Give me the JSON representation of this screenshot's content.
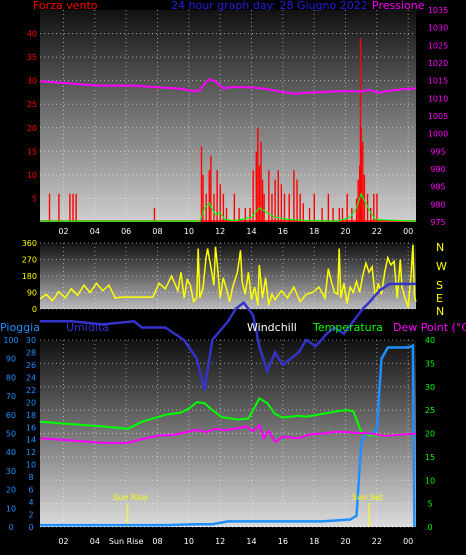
{
  "colors": {
    "wind": "#ff0000",
    "pressure": "#ff00ff",
    "title": "#2222dd",
    "winddir": "#ffff00",
    "rain": "#1e90ff",
    "humidity": "#3333cc",
    "windchill": "#ffffff",
    "temperature": "#00ff00",
    "dewpoint": "#ff00ff"
  },
  "top": {
    "left_label": "Forza vento",
    "title": "24 hour graph day:  28 Giugno 2022",
    "right_label": "Pressione"
  },
  "bottom": {
    "rain_label": "Pioggia",
    "humidity_label": "Umidita",
    "windchill_label": "Windchill",
    "temp_label": "Temperatura",
    "dew_label": "Dew Point (°C)",
    "sunrise_label": "Sun Rise",
    "sunset_label": "Sun Set"
  },
  "compass": [
    "N",
    "W",
    "S",
    "E",
    "N"
  ],
  "chart_data": [
    {
      "type": "bar",
      "name": "wind-pressure",
      "x_ticks": [
        "02",
        "04",
        "06",
        "08",
        "10",
        "12",
        "14",
        "16",
        "18",
        "20",
        "22",
        "00"
      ],
      "ylim_left": [
        0,
        45
      ],
      "yticks_left": [
        "5",
        "10",
        "15",
        "20",
        "25",
        "30",
        "35",
        "40"
      ],
      "ylim_right": [
        975,
        1035
      ],
      "yticks_right": [
        "975",
        "980",
        "985",
        "990",
        "995",
        "1000",
        "1005",
        "1010",
        "1015",
        "1020",
        "1025",
        "1030",
        "1035"
      ],
      "wind_gust_bars": [
        [
          0.6,
          6
        ],
        [
          1.2,
          6
        ],
        [
          1.9,
          6
        ],
        [
          2.1,
          6
        ],
        [
          2.3,
          6
        ],
        [
          7.3,
          3
        ],
        [
          10.3,
          16
        ],
        [
          10.4,
          10
        ],
        [
          10.6,
          6
        ],
        [
          10.8,
          11
        ],
        [
          10.9,
          14
        ],
        [
          11.1,
          6
        ],
        [
          11.3,
          11
        ],
        [
          11.5,
          8
        ],
        [
          11.7,
          6
        ],
        [
          11.9,
          3
        ],
        [
          12.4,
          6
        ],
        [
          12.7,
          3
        ],
        [
          13.1,
          3
        ],
        [
          13.4,
          3
        ],
        [
          13.6,
          11
        ],
        [
          13.8,
          15
        ],
        [
          13.9,
          20
        ],
        [
          14.0,
          12
        ],
        [
          14.1,
          17
        ],
        [
          14.2,
          9
        ],
        [
          14.3,
          6
        ],
        [
          14.6,
          11
        ],
        [
          14.8,
          6
        ],
        [
          15.0,
          9
        ],
        [
          15.2,
          11
        ],
        [
          15.4,
          8
        ],
        [
          15.6,
          6
        ],
        [
          15.9,
          6
        ],
        [
          16.2,
          11
        ],
        [
          16.4,
          9
        ],
        [
          16.6,
          6
        ],
        [
          16.8,
          4
        ],
        [
          17.2,
          3
        ],
        [
          17.5,
          6
        ],
        [
          18.0,
          3
        ],
        [
          18.4,
          6
        ],
        [
          18.7,
          3
        ],
        [
          19.1,
          3
        ],
        [
          19.3,
          3
        ],
        [
          19.6,
          6
        ],
        [
          19.9,
          3
        ],
        [
          20.2,
          5
        ],
        [
          20.3,
          9
        ],
        [
          20.4,
          12
        ],
        [
          20.45,
          39
        ],
        [
          20.5,
          20
        ],
        [
          20.6,
          17
        ],
        [
          20.7,
          10
        ],
        [
          20.9,
          6
        ],
        [
          21.1,
          3
        ],
        [
          21.3,
          6
        ],
        [
          21.5,
          6
        ]
      ],
      "wind_avg": [
        [
          0,
          0.2
        ],
        [
          10.2,
          0.2
        ],
        [
          10.3,
          1
        ],
        [
          10.5,
          3
        ],
        [
          10.8,
          4
        ],
        [
          11.2,
          1.5
        ],
        [
          11.5,
          2
        ],
        [
          11.8,
          0.5
        ],
        [
          12.5,
          0.3
        ],
        [
          13.5,
          1
        ],
        [
          14,
          3
        ],
        [
          14.5,
          2
        ],
        [
          15,
          1
        ],
        [
          16,
          0.5
        ],
        [
          17,
          0.3
        ],
        [
          19,
          0.2
        ],
        [
          19.8,
          1
        ],
        [
          20.2,
          3
        ],
        [
          20.5,
          6
        ],
        [
          20.8,
          4
        ],
        [
          21.1,
          2
        ],
        [
          21.4,
          0.5
        ],
        [
          24,
          0.2
        ]
      ],
      "pressure": [
        [
          0,
          1014.8
        ],
        [
          1,
          1014.5
        ],
        [
          2,
          1014.2
        ],
        [
          3,
          1013.8
        ],
        [
          4,
          1013.6
        ],
        [
          5,
          1013.6
        ],
        [
          6,
          1013.6
        ],
        [
          7,
          1013.3
        ],
        [
          8,
          1013.0
        ],
        [
          9,
          1012.7
        ],
        [
          9.6,
          1012.2
        ],
        [
          10.1,
          1012.0
        ],
        [
          10.5,
          1014.0
        ],
        [
          10.8,
          1015.4
        ],
        [
          11.2,
          1014.8
        ],
        [
          11.7,
          1012.8
        ],
        [
          12.3,
          1013.2
        ],
        [
          13.5,
          1013.1
        ],
        [
          14.5,
          1012.6
        ],
        [
          15.2,
          1012.0
        ],
        [
          15.8,
          1011.6
        ],
        [
          16.3,
          1011.3
        ],
        [
          17,
          1011.6
        ],
        [
          18,
          1011.8
        ],
        [
          19,
          1012.0
        ],
        [
          20,
          1012.0
        ],
        [
          20.5,
          1011.9
        ],
        [
          21,
          1012.4
        ],
        [
          21.6,
          1011.6
        ],
        [
          22.4,
          1012.2
        ],
        [
          23.2,
          1012.6
        ],
        [
          24,
          1012.8
        ]
      ]
    },
    {
      "type": "line",
      "name": "wind-direction",
      "ylim": [
        0,
        360
      ],
      "yticks": [
        "0",
        "90",
        "180",
        "270",
        "360"
      ],
      "values": [
        [
          0,
          55
        ],
        [
          0.4,
          80
        ],
        [
          0.8,
          45
        ],
        [
          1.2,
          95
        ],
        [
          1.6,
          60
        ],
        [
          2.0,
          110
        ],
        [
          2.4,
          75
        ],
        [
          2.8,
          130
        ],
        [
          3.2,
          90
        ],
        [
          3.6,
          140
        ],
        [
          4.0,
          100
        ],
        [
          4.4,
          130
        ],
        [
          4.8,
          60
        ],
        [
          5.2,
          65
        ],
        [
          5.6,
          65
        ],
        [
          6.0,
          65
        ],
        [
          6.4,
          65
        ],
        [
          6.8,
          65
        ],
        [
          7.2,
          65
        ],
        [
          7.6,
          140
        ],
        [
          8.0,
          110
        ],
        [
          8.4,
          180
        ],
        [
          8.8,
          100
        ],
        [
          9.0,
          200
        ],
        [
          9.2,
          60
        ],
        [
          9.4,
          160
        ],
        [
          9.6,
          130
        ],
        [
          9.8,
          40
        ],
        [
          10.0,
          60
        ],
        [
          10.1,
          330
        ],
        [
          10.2,
          60
        ],
        [
          10.4,
          110
        ],
        [
          10.6,
          280
        ],
        [
          10.7,
          330
        ],
        [
          10.9,
          230
        ],
        [
          11.1,
          130
        ],
        [
          11.2,
          340
        ],
        [
          11.3,
          260
        ],
        [
          11.5,
          60
        ],
        [
          11.7,
          170
        ],
        [
          11.9,
          110
        ],
        [
          12.1,
          40
        ],
        [
          12.3,
          120
        ],
        [
          12.6,
          200
        ],
        [
          12.8,
          320
        ],
        [
          12.9,
          150
        ],
        [
          13.1,
          80
        ],
        [
          13.3,
          200
        ],
        [
          13.5,
          50
        ],
        [
          13.7,
          120
        ],
        [
          13.9,
          20
        ],
        [
          14.0,
          240
        ],
        [
          14.2,
          60
        ],
        [
          14.4,
          170
        ],
        [
          14.6,
          20
        ],
        [
          14.8,
          80
        ],
        [
          15.0,
          50
        ],
        [
          15.4,
          100
        ],
        [
          15.8,
          60
        ],
        [
          16.2,
          120
        ],
        [
          16.6,
          40
        ],
        [
          17.0,
          80
        ],
        [
          17.4,
          90
        ],
        [
          17.8,
          120
        ],
        [
          18.2,
          60
        ],
        [
          18.4,
          220
        ],
        [
          18.6,
          150
        ],
        [
          18.8,
          90
        ],
        [
          19.0,
          80
        ],
        [
          19.1,
          330
        ],
        [
          19.2,
          60
        ],
        [
          19.4,
          140
        ],
        [
          19.6,
          30
        ],
        [
          19.8,
          120
        ],
        [
          20.0,
          90
        ],
        [
          20.2,
          150
        ],
        [
          20.4,
          90
        ],
        [
          20.6,
          180
        ],
        [
          20.8,
          250
        ],
        [
          21.0,
          200
        ],
        [
          21.2,
          230
        ],
        [
          21.4,
          60
        ],
        [
          21.6,
          140
        ],
        [
          21.8,
          80
        ],
        [
          22.0,
          200
        ],
        [
          22.2,
          280
        ],
        [
          22.4,
          240
        ],
        [
          22.6,
          260
        ],
        [
          22.8,
          60
        ],
        [
          23.0,
          270
        ],
        [
          23.1,
          120
        ],
        [
          23.3,
          60
        ],
        [
          23.5,
          10
        ],
        [
          23.7,
          200
        ],
        [
          23.8,
          350
        ],
        [
          23.9,
          70
        ],
        [
          24.0,
          40
        ]
      ]
    },
    {
      "type": "line",
      "name": "rain-humidity-temperature",
      "x_ticks": [
        "02",
        "04",
        "Sun Rise",
        "08",
        "10",
        "12",
        "14",
        "16",
        "18",
        "20",
        "22",
        "00"
      ],
      "ylim_rain": [
        0,
        100
      ],
      "yticks_rain": [
        "0",
        "10",
        "20",
        "30",
        "40",
        "50",
        "60",
        "70",
        "80",
        "90",
        "100"
      ],
      "ylim_humidity": [
        0,
        30
      ],
      "yticks_humidity": [
        "0",
        "2",
        "4",
        "6",
        "8",
        "10",
        "12",
        "14",
        "16",
        "18",
        "20",
        "22",
        "24",
        "26",
        "28",
        "30"
      ],
      "ylim_temp": [
        0,
        40
      ],
      "yticks_temp": [
        "0",
        "5",
        "10",
        "15",
        "20",
        "25",
        "30",
        "35",
        "40"
      ],
      "sunrise_hour": 5.6,
      "sunset_hour": 21.0,
      "rain": [
        [
          0,
          1
        ],
        [
          8,
          1
        ],
        [
          10,
          1.5
        ],
        [
          11,
          1.5
        ],
        [
          12,
          3
        ],
        [
          18,
          3
        ],
        [
          19.8,
          4
        ],
        [
          20.2,
          6
        ],
        [
          20.5,
          45
        ],
        [
          20.8,
          50
        ],
        [
          21.2,
          50
        ],
        [
          21.5,
          52
        ],
        [
          21.8,
          90
        ],
        [
          22.2,
          96
        ],
        [
          23.5,
          96
        ],
        [
          23.8,
          97
        ],
        [
          23.9,
          0
        ]
      ],
      "humidity": [
        [
          0,
          33
        ],
        [
          2,
          33
        ],
        [
          4,
          32.5
        ],
        [
          6,
          33
        ],
        [
          6.5,
          32
        ],
        [
          8,
          32
        ],
        [
          9.2,
          30
        ],
        [
          10,
          27
        ],
        [
          10.5,
          22
        ],
        [
          11,
          30
        ],
        [
          12,
          33
        ],
        [
          12.5,
          35
        ],
        [
          13,
          36
        ],
        [
          13.6,
          34
        ],
        [
          14,
          29
        ],
        [
          14.5,
          25
        ],
        [
          15,
          28
        ],
        [
          15.5,
          26
        ],
        [
          16.5,
          28
        ],
        [
          17,
          30
        ],
        [
          17.6,
          29
        ],
        [
          18.3,
          31
        ],
        [
          18.8,
          32
        ],
        [
          19.4,
          31
        ],
        [
          20.0,
          33
        ],
        [
          20.6,
          35
        ],
        [
          21,
          36
        ],
        [
          21.7,
          38
        ],
        [
          22.3,
          39
        ],
        [
          24,
          39
        ]
      ],
      "temperature": [
        [
          0,
          22.5
        ],
        [
          2,
          22.0
        ],
        [
          4,
          21.5
        ],
        [
          5.6,
          21
        ],
        [
          6.5,
          22.5
        ],
        [
          8,
          24
        ],
        [
          9,
          24.5
        ],
        [
          9.5,
          25.3
        ],
        [
          10,
          26.7
        ],
        [
          10.5,
          26.5
        ],
        [
          11,
          25
        ],
        [
          11.6,
          23.5
        ],
        [
          12.6,
          23
        ],
        [
          13.3,
          23.2
        ],
        [
          13.6,
          25
        ],
        [
          14,
          27.5
        ],
        [
          14.5,
          26.5
        ],
        [
          15,
          24.2
        ],
        [
          15.5,
          23.4
        ],
        [
          16.5,
          23.8
        ],
        [
          17,
          23.6
        ],
        [
          18,
          24.2
        ],
        [
          19,
          24.8
        ],
        [
          19.6,
          25.0
        ],
        [
          20.0,
          24.8
        ],
        [
          20.5,
          20.3
        ],
        [
          21,
          19.6
        ],
        [
          22,
          19.6
        ],
        [
          24,
          20
        ]
      ],
      "dewpoint": [
        [
          0,
          19
        ],
        [
          2,
          18.5
        ],
        [
          4,
          18
        ],
        [
          5.6,
          18
        ],
        [
          6.5,
          18.8
        ],
        [
          7.5,
          19.5
        ],
        [
          8.5,
          19.7
        ],
        [
          9.5,
          20.4
        ],
        [
          10,
          20.8
        ],
        [
          10.6,
          20.3
        ],
        [
          11.2,
          21
        ],
        [
          11.8,
          20.7
        ],
        [
          12.4,
          21
        ],
        [
          13.2,
          21.5
        ],
        [
          13.6,
          20.5
        ],
        [
          14,
          21.8
        ],
        [
          14.3,
          19
        ],
        [
          14.6,
          20.6
        ],
        [
          15,
          18.2
        ],
        [
          15.5,
          19.3
        ],
        [
          16.5,
          19
        ],
        [
          17.2,
          19.8
        ],
        [
          18,
          20
        ],
        [
          19,
          20.4
        ],
        [
          20,
          20.2
        ],
        [
          20.5,
          20.1
        ],
        [
          21,
          20
        ],
        [
          22,
          19.5
        ],
        [
          24,
          20
        ]
      ]
    }
  ]
}
